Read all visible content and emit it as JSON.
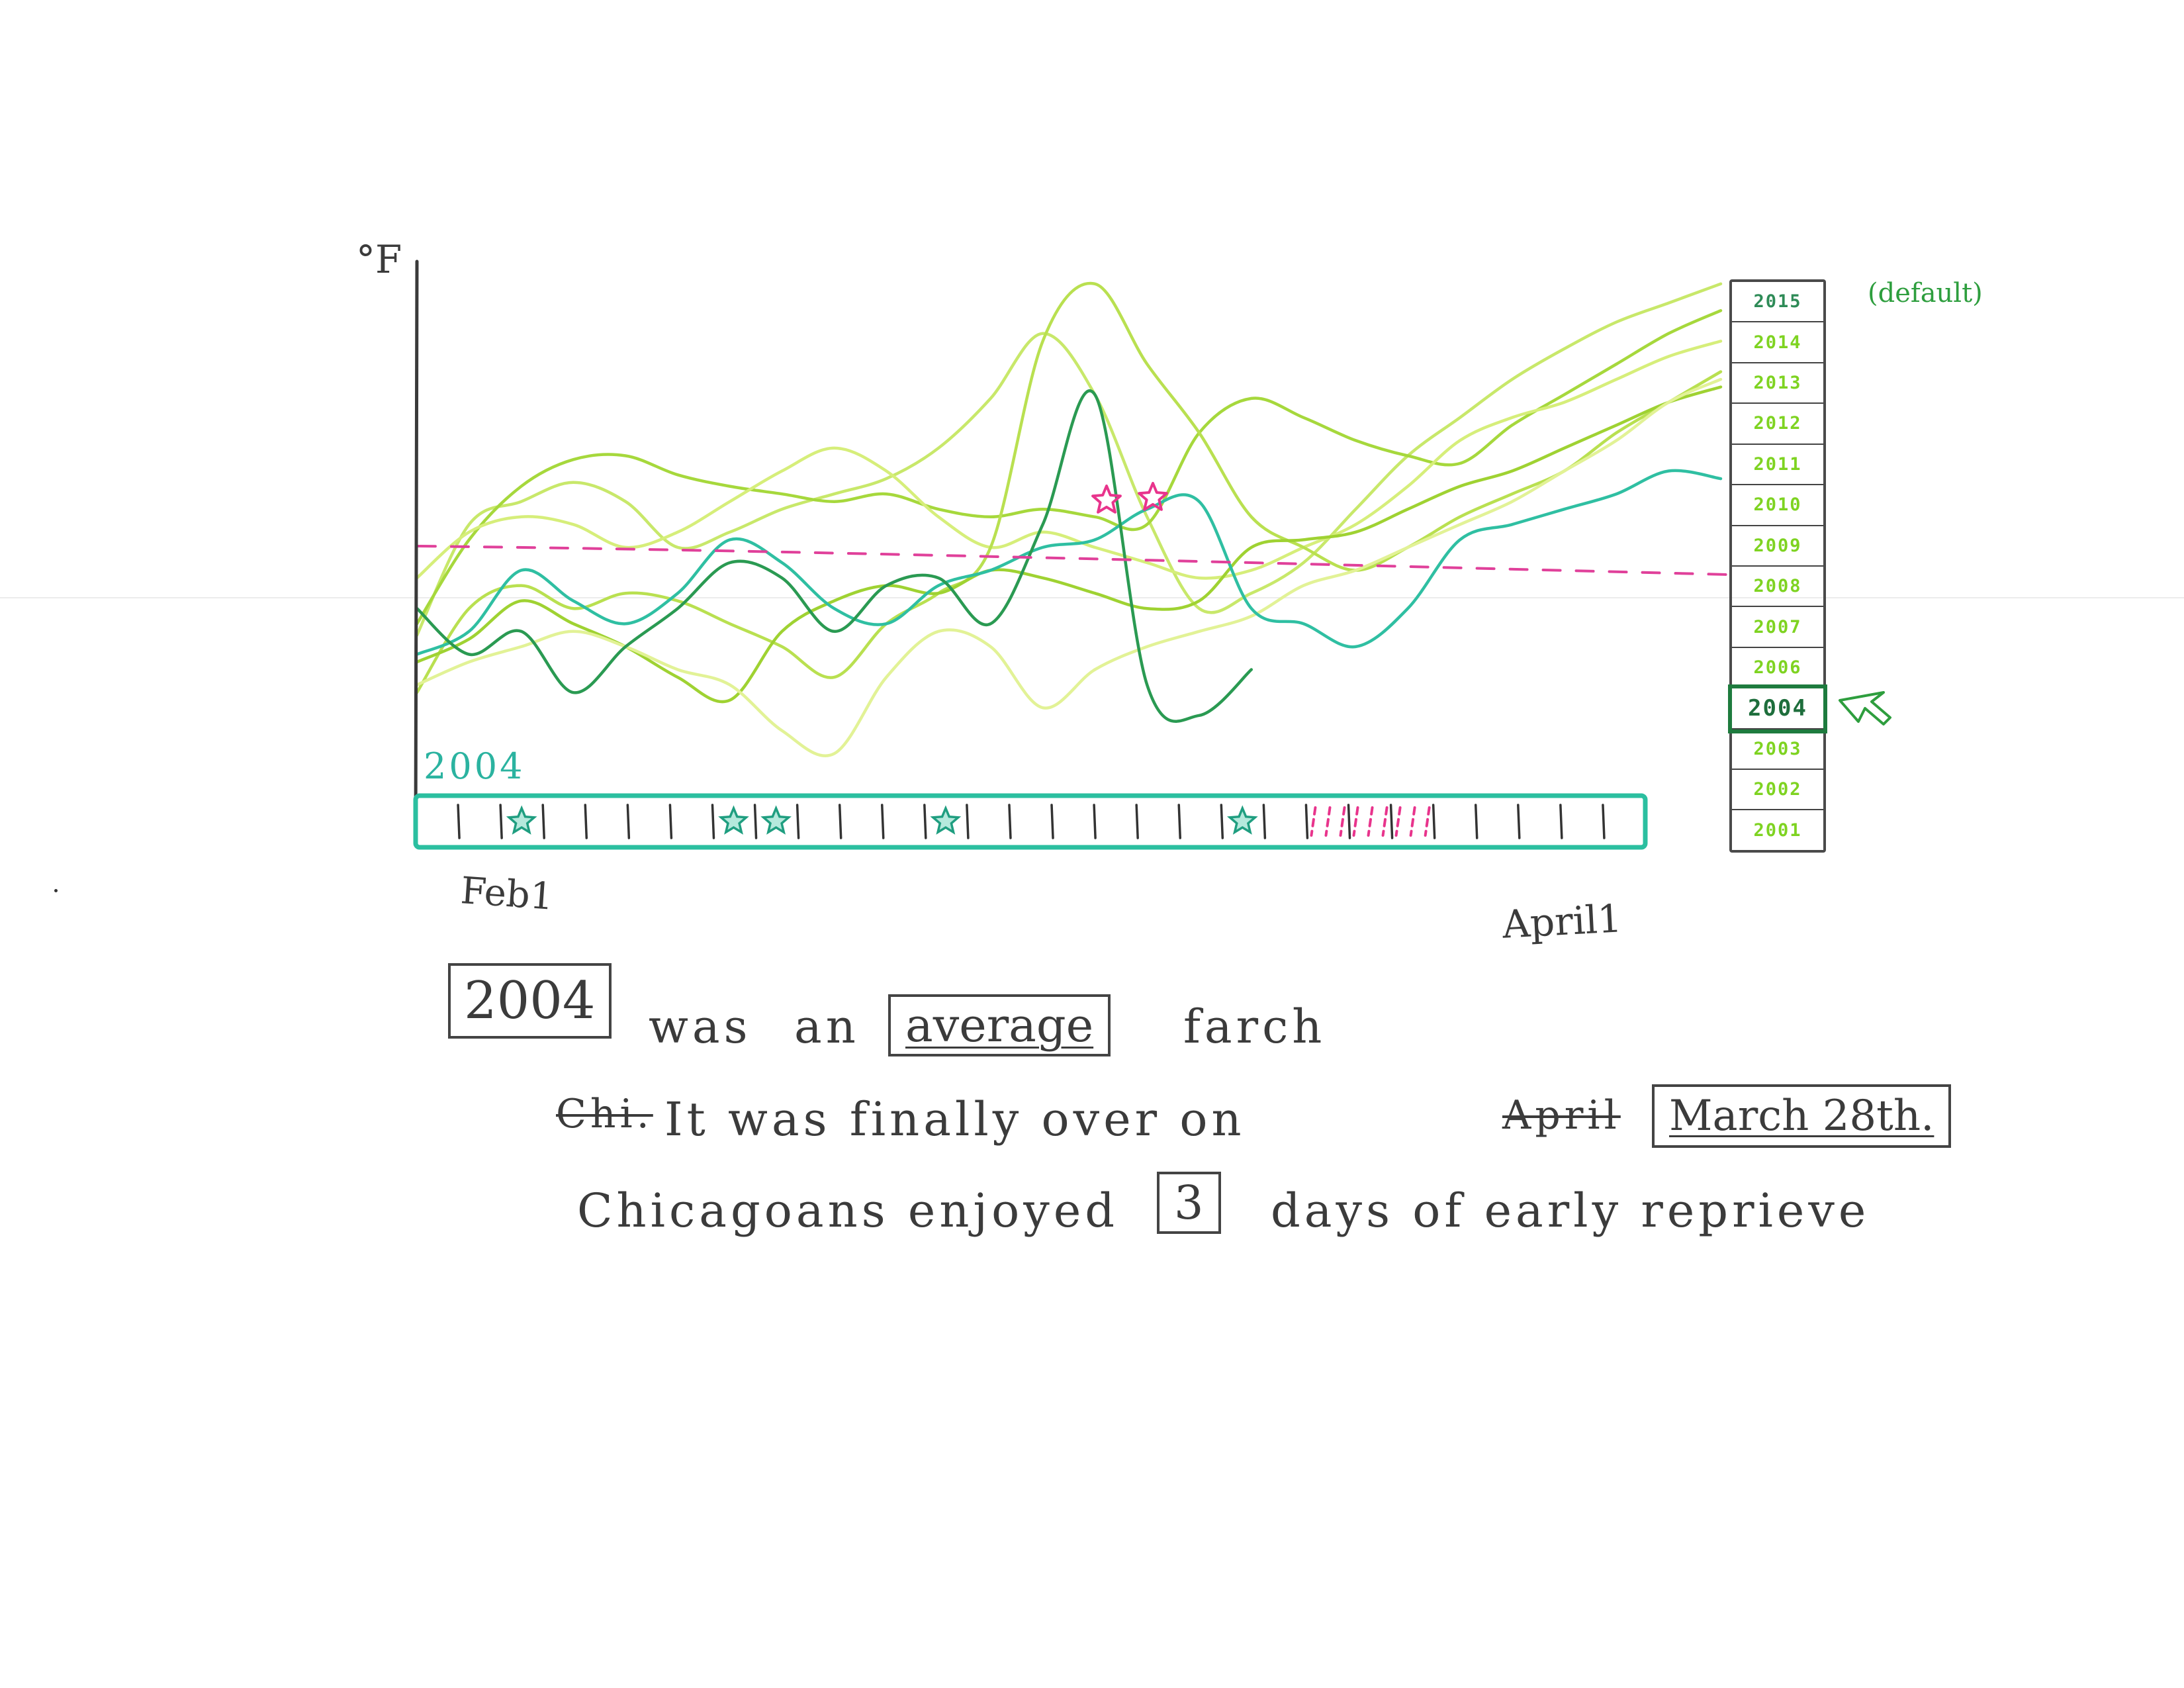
{
  "chart": {
    "unit_label": "°F",
    "x_start": "Feb1",
    "x_end": "April1",
    "timeline_year": "2004",
    "chart_data": {
      "type": "line",
      "ylabel": "°F",
      "x_start_label": "Feb1",
      "x_end_label": "April1",
      "threshold_line": {
        "style": "dashed",
        "color": "#e0409a"
      },
      "highlight_markers": [
        "star",
        "star"
      ],
      "series": [
        {
          "color": "#c8e86a",
          "values": [
            33,
            62,
            68,
            73,
            68,
            56,
            60,
            66,
            70,
            74,
            82,
            95,
            112,
            96,
            64,
            40,
            44,
            52,
            66,
            80,
            90,
            100,
            108,
            115,
            120,
            125
          ]
        },
        {
          "color": "#a6d83c",
          "values": [
            36,
            58,
            72,
            79,
            80,
            75,
            72,
            70,
            68,
            70,
            66,
            64,
            66,
            64,
            62,
            86,
            95,
            90,
            84,
            80,
            78,
            88,
            96,
            104,
            112,
            118
          ]
        },
        {
          "color": "#d6ee7a",
          "values": [
            48,
            60,
            64,
            62,
            56,
            60,
            68,
            76,
            82,
            76,
            64,
            56,
            60,
            56,
            52,
            48,
            50,
            56,
            62,
            72,
            84,
            90,
            94,
            100,
            106,
            110
          ]
        },
        {
          "color": "#b9e050",
          "values": [
            18,
            40,
            46,
            40,
            44,
            42,
            36,
            30,
            22,
            36,
            44,
            56,
            110,
            125,
            104,
            86,
            64,
            56,
            50,
            56,
            64,
            70,
            76,
            86,
            94,
            102
          ]
        },
        {
          "color": "#9fd232",
          "values": [
            26,
            32,
            42,
            36,
            30,
            22,
            16,
            34,
            42,
            46,
            44,
            50,
            48,
            44,
            40,
            42,
            56,
            58,
            60,
            66,
            72,
            76,
            82,
            88,
            94,
            98
          ]
        },
        {
          "color": "#e2f296",
          "values": [
            20,
            26,
            30,
            34,
            30,
            24,
            20,
            8,
            2,
            22,
            34,
            30,
            14,
            24,
            30,
            34,
            38,
            46,
            50,
            56,
            62,
            68,
            76,
            84,
            94,
            100
          ]
        },
        {
          "color": "#2fbfa2",
          "values": [
            28,
            34,
            50,
            42,
            36,
            44,
            58,
            52,
            40,
            36,
            46,
            50,
            56,
            58,
            66,
            68,
            40,
            36,
            30,
            40,
            58,
            62,
            66,
            70,
            76,
            74
          ]
        },
        {
          "color": "#2a9a52",
          "values": [
            40,
            28,
            34,
            18,
            30,
            40,
            52,
            48,
            34,
            46,
            48,
            36,
            62,
            96,
            20,
            12,
            24,
            null,
            null,
            null,
            null,
            null,
            null,
            null,
            null,
            null
          ]
        }
      ],
      "timeline": {
        "year": "2004",
        "day_count": 28,
        "star_days": [
          2,
          7,
          8,
          12,
          19
        ],
        "reprieve_days": [
          21,
          22,
          23
        ]
      }
    }
  },
  "year_picker": {
    "years": [
      "2015",
      "2014",
      "2013",
      "2012",
      "2011",
      "2010",
      "2009",
      "2008",
      "2007",
      "2006",
      "2004",
      "2003",
      "2002",
      "2001"
    ],
    "selected": "2004",
    "default_note": "(default)"
  },
  "summary": {
    "year": "2004",
    "was": "was",
    "an": "an",
    "adjective": "average",
    "noun": "farch",
    "struck_word": "Chi.",
    "it_was": "It   was   finally   over   on",
    "struck_month": "April",
    "end_date": "March 28th.",
    "line3_start": "Chicagoans   enjoyed",
    "count": "3",
    "line3_end": "days   of   early   reprieve"
  }
}
